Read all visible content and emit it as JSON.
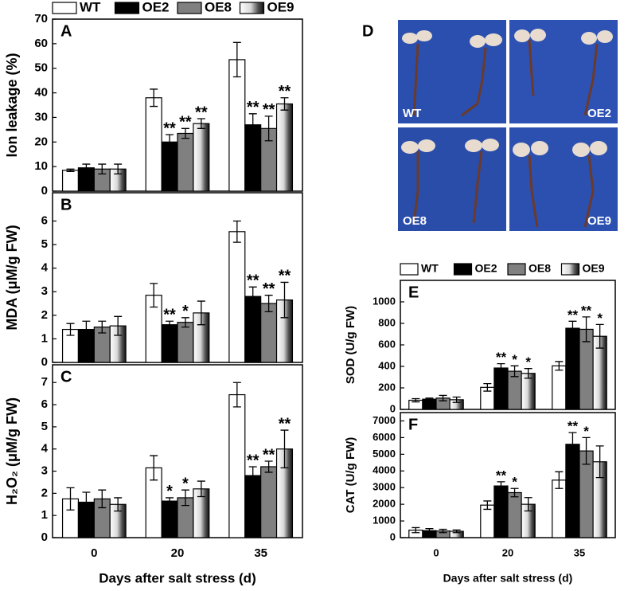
{
  "chart_data": [
    {
      "type": "bar",
      "label": "A",
      "ylabel": "Ion leakage (%)",
      "ylim": [
        0,
        70
      ],
      "yticks": [
        0,
        10,
        20,
        30,
        40,
        50,
        60,
        70
      ],
      "series": [
        {
          "name": "WT",
          "color": "#ffffff",
          "values": [
            8.5,
            38,
            53.5
          ],
          "errors": [
            0.5,
            3.5,
            7
          ],
          "significance": [
            null,
            null,
            null
          ]
        },
        {
          "name": "OE2",
          "color": "#000000",
          "values": [
            9.5,
            20,
            27
          ],
          "errors": [
            1.5,
            3,
            4.5
          ],
          "significance": [
            null,
            "**",
            "**"
          ]
        },
        {
          "name": "OE8",
          "color": "#808080",
          "values": [
            9,
            23.5,
            25.5
          ],
          "errors": [
            2,
            2,
            5
          ],
          "significance": [
            null,
            "**",
            "**"
          ]
        },
        {
          "name": "OE9",
          "color": "#b0b0b0",
          "fill_style": "gradient",
          "values": [
            9,
            27.5,
            35.5
          ],
          "errors": [
            2,
            2,
            2.5
          ],
          "significance": [
            null,
            "**",
            "**"
          ]
        }
      ]
    },
    {
      "type": "bar",
      "label": "B",
      "ylabel": "MDA (μM/g FW)",
      "ylim": [
        0,
        7.2
      ],
      "yticks": [
        0,
        1,
        2,
        3,
        4,
        5,
        6
      ],
      "series": [
        {
          "color": "#ffffff",
          "values": [
            1.4,
            2.85,
            5.55
          ],
          "errors": [
            0.25,
            0.5,
            0.45
          ],
          "significance": [
            null,
            null,
            null
          ]
        },
        {
          "color": "#000000",
          "values": [
            1.4,
            1.6,
            2.8
          ],
          "errors": [
            0.35,
            0.15,
            0.4
          ],
          "significance": [
            null,
            "**",
            "**"
          ]
        },
        {
          "color": "#808080",
          "values": [
            1.5,
            1.7,
            2.5
          ],
          "errors": [
            0.25,
            0.2,
            0.35
          ],
          "significance": [
            null,
            "*",
            "**"
          ]
        },
        {
          "color": "#b0b0b0",
          "fill_style": "gradient",
          "values": [
            1.55,
            2.1,
            2.65
          ],
          "errors": [
            0.4,
            0.5,
            0.75
          ],
          "significance": [
            null,
            null,
            "**"
          ]
        }
      ]
    },
    {
      "type": "bar",
      "label": "C",
      "ylabel": "H₂O₂ (μM/g FW)",
      "ylim": [
        0,
        7.8
      ],
      "yticks": [
        0,
        1,
        2,
        3,
        4,
        5,
        6,
        7
      ],
      "categories": [
        "0",
        "20",
        "35"
      ],
      "xlabel": "Days after salt stress (d)",
      "series": [
        {
          "color": "#ffffff",
          "values": [
            1.75,
            3.15,
            6.45
          ],
          "errors": [
            0.5,
            0.55,
            0.55
          ],
          "significance": [
            null,
            null,
            null
          ]
        },
        {
          "color": "#000000",
          "values": [
            1.6,
            1.65,
            2.8
          ],
          "errors": [
            0.45,
            0.15,
            0.4
          ],
          "significance": [
            null,
            "*",
            "**"
          ]
        },
        {
          "color": "#808080",
          "values": [
            1.75,
            1.8,
            3.2
          ],
          "errors": [
            0.4,
            0.35,
            0.25
          ],
          "significance": [
            null,
            "*",
            "**"
          ]
        },
        {
          "color": "#b0b0b0",
          "fill_style": "gradient",
          "values": [
            1.5,
            2.2,
            4.0
          ],
          "errors": [
            0.3,
            0.35,
            0.85
          ],
          "significance": [
            null,
            null,
            "**"
          ]
        }
      ]
    },
    {
      "type": "bar",
      "label": "E",
      "ylabel": "SOD (U/g FW)",
      "ylim": [
        0,
        1200
      ],
      "yticks": [
        0,
        200,
        400,
        600,
        800,
        1000
      ],
      "series": [
        {
          "name": "WT",
          "color": "#ffffff",
          "values": [
            85,
            205,
            405
          ],
          "errors": [
            15,
            35,
            40
          ],
          "significance": [
            null,
            null,
            null
          ]
        },
        {
          "name": "OE2",
          "color": "#000000",
          "values": [
            95,
            385,
            755
          ],
          "errors": [
            10,
            40,
            65
          ],
          "significance": [
            null,
            "**",
            "**"
          ]
        },
        {
          "name": "OE8",
          "color": "#808080",
          "values": [
            105,
            355,
            745
          ],
          "errors": [
            25,
            50,
            115
          ],
          "significance": [
            null,
            "*",
            "**"
          ]
        },
        {
          "name": "OE9",
          "color": "#b0b0b0",
          "fill_style": "gradient",
          "values": [
            90,
            335,
            680
          ],
          "errors": [
            25,
            45,
            110
          ],
          "significance": [
            null,
            "*",
            "*"
          ]
        }
      ]
    },
    {
      "type": "bar",
      "label": "F",
      "ylabel": "CAT (U/g FW)",
      "ylim": [
        0,
        7500
      ],
      "yticks": [
        0,
        1000,
        2000,
        3000,
        4000,
        5000,
        6000,
        7000
      ],
      "categories": [
        "0",
        "20",
        "35"
      ],
      "xlabel": "Days after salt stress (d)",
      "series": [
        {
          "color": "#ffffff",
          "values": [
            450,
            1950,
            3450
          ],
          "errors": [
            150,
            250,
            500
          ],
          "significance": [
            null,
            null,
            null
          ]
        },
        {
          "color": "#000000",
          "values": [
            420,
            3100,
            5600
          ],
          "errors": [
            120,
            250,
            700
          ],
          "significance": [
            null,
            "**",
            "**"
          ]
        },
        {
          "color": "#808080",
          "values": [
            400,
            2700,
            5200
          ],
          "errors": [
            100,
            250,
            800
          ],
          "significance": [
            null,
            "*",
            "*"
          ]
        },
        {
          "color": "#b0b0b0",
          "fill_style": "gradient",
          "values": [
            380,
            2000,
            4550
          ],
          "errors": [
            80,
            400,
            950
          ],
          "significance": [
            null,
            null,
            null
          ]
        }
      ]
    }
  ],
  "photo_panel": {
    "label": "D",
    "captions": [
      "WT",
      "OE2",
      "OE8",
      "OE9"
    ]
  }
}
